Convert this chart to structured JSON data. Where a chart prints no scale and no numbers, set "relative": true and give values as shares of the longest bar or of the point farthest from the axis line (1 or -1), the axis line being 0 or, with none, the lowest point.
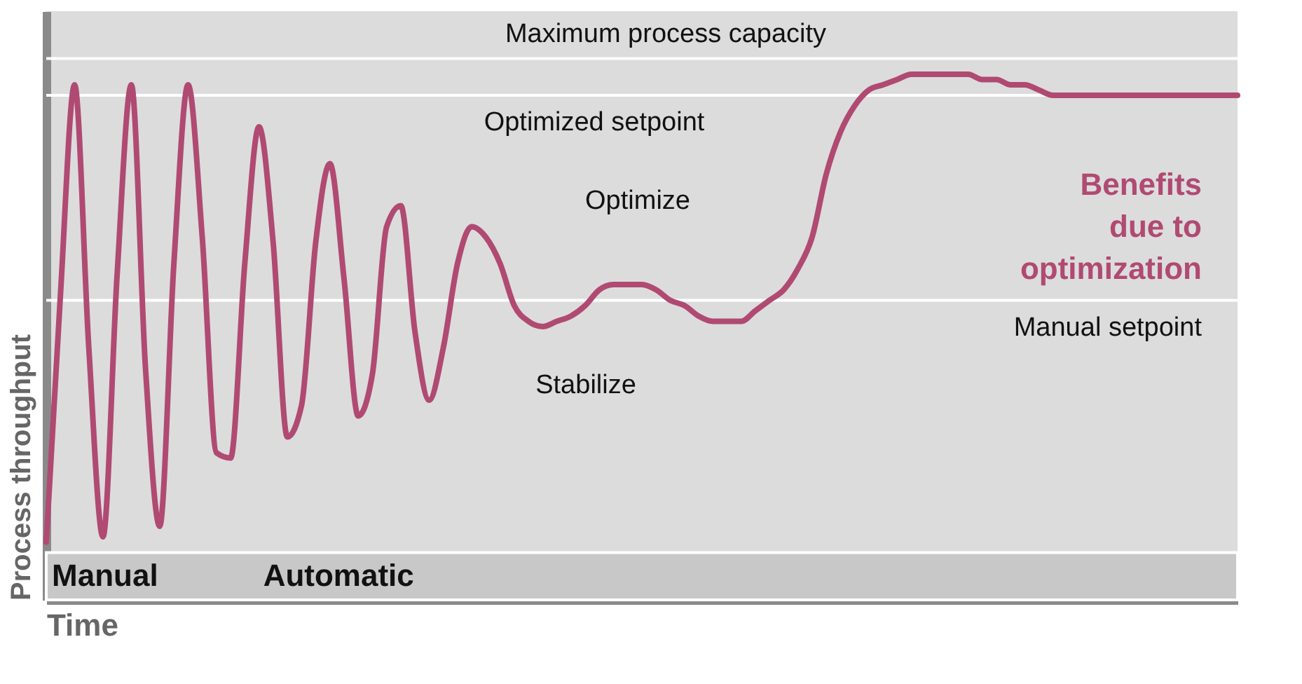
{
  "chart_data": {
    "type": "line",
    "relative": true,
    "xlabel": "Time",
    "ylabel": "Process throughput",
    "grid": false,
    "marker": "none",
    "line_style": "solid",
    "categories": [
      null,
      null,
      null,
      null,
      null,
      null,
      null,
      null,
      null,
      null,
      null,
      null,
      null,
      null,
      null,
      null,
      null,
      null,
      null,
      null,
      null,
      null,
      null,
      null,
      null,
      null,
      null,
      null,
      null,
      null,
      null,
      null,
      null,
      null,
      null,
      null,
      null,
      null,
      null,
      null,
      null,
      null,
      null,
      null,
      null,
      null,
      null,
      null,
      null,
      null,
      null,
      null,
      null,
      null,
      null,
      null,
      null,
      null,
      null,
      null,
      null,
      null,
      null,
      null,
      null,
      null,
      null,
      null,
      null,
      null,
      null,
      null,
      null,
      null,
      null,
      null,
      null,
      null,
      null,
      null,
      null,
      null,
      null,
      null,
      null
    ],
    "series": [
      {
        "color": "#b04a72",
        "values": [
          0.11,
          0.58,
          0.98,
          0.48,
          0.12,
          0.62,
          0.98,
          0.44,
          0.14,
          0.64,
          0.98,
          0.69,
          0.28,
          0.27,
          0.64,
          0.9,
          0.68,
          0.31,
          0.37,
          0.68,
          0.83,
          0.61,
          0.35,
          0.43,
          0.71,
          0.75,
          0.51,
          0.38,
          0.48,
          0.64,
          0.71,
          0.69,
          0.64,
          0.56,
          0.53,
          0.52,
          0.53,
          0.54,
          0.56,
          0.59,
          0.6,
          0.6,
          0.6,
          0.59,
          0.57,
          0.56,
          0.54,
          0.53,
          0.53,
          0.53,
          0.55,
          0.57,
          0.59,
          0.63,
          0.69,
          0.81,
          0.89,
          0.94,
          0.97,
          0.98,
          0.99,
          1.0,
          1.0,
          1.0,
          1.0,
          1.0,
          0.99,
          0.99,
          0.98,
          0.98,
          0.97,
          0.96,
          0.96,
          0.96,
          0.96,
          0.96,
          0.96,
          0.96,
          0.96,
          0.96,
          0.96,
          0.96,
          0.96,
          0.96,
          0.96
        ]
      }
    ],
    "ref_lines": [
      {
        "axis": "y",
        "value": 1.03,
        "label": "Maximum process capacity",
        "color": "#ffffff"
      },
      {
        "axis": "y",
        "value": 0.96,
        "label": "Optimized setpoint",
        "color": "#ffffff"
      },
      {
        "axis": "y",
        "value": 0.57,
        "label": "Manual setpoint",
        "color": "#ffffff"
      }
    ],
    "bands": [
      {
        "axis": "y",
        "from": 0,
        "to": 0.09,
        "color": "#c8c8c8"
      }
    ],
    "annotations": [
      "Stabilize",
      "Optimize",
      "Benefits\ndue to\noptimization",
      "Manual",
      "Automatic"
    ]
  }
}
